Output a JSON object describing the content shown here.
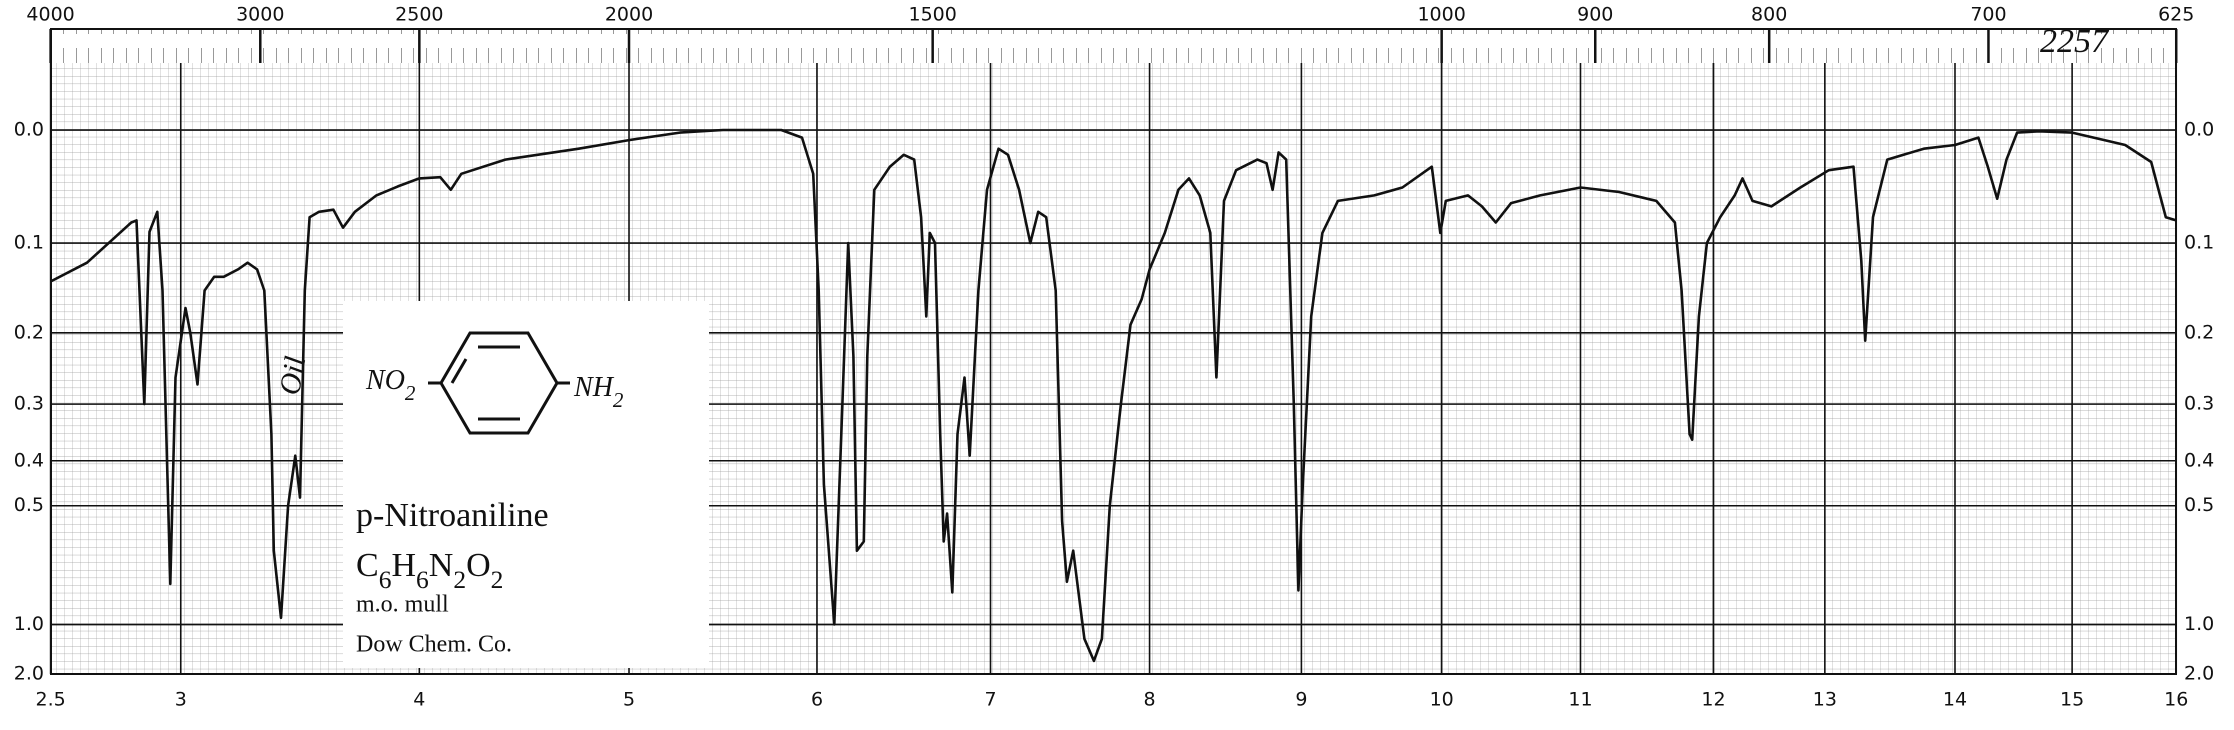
{
  "chart_data": {
    "type": "line",
    "y_scale": "transmittance",
    "color": "#111111",
    "grid": true,
    "xlim": [
      2.5,
      16
    ],
    "ylim": [
      -0.05,
      2
    ],
    "xticks": [
      2.5,
      3,
      4,
      5,
      6,
      7,
      8,
      9,
      10,
      11,
      12,
      13,
      14,
      15,
      16
    ],
    "x2ticks": [
      4000,
      3000,
      2500,
      2000,
      1500,
      1000,
      900,
      800,
      700,
      625
    ],
    "yticks": [
      {
        "value": 0,
        "label": "0.0"
      },
      0.1,
      0.2,
      0.3,
      0.4,
      0.5,
      {
        "value": 1,
        "label": "1.0"
      },
      {
        "value": 2,
        "label": "2.0"
      }
    ],
    "annotations": [
      "2257",
      "Oil"
    ],
    "inset": {
      "left_group": "NO2",
      "right_group": "NH2",
      "name": "p-Nitroaniline",
      "formula": "C6H6N2O2",
      "medium": "m.o. mull",
      "source": "Dow Chem. Co."
    },
    "x": [
      2.5,
      2.64,
      2.81,
      2.83,
      2.86,
      2.88,
      2.91,
      2.93,
      2.96,
      2.98,
      3.02,
      3.04,
      3.07,
      3.1,
      3.14,
      3.18,
      3.24,
      3.28,
      3.32,
      3.35,
      3.38,
      3.39,
      3.42,
      3.45,
      3.48,
      3.5,
      3.52,
      3.54,
      3.58,
      3.64,
      3.68,
      3.73,
      3.82,
      3.91,
      4.0,
      4.1,
      4.15,
      4.2,
      4.41,
      4.76,
      5.0,
      5.27,
      5.5,
      5.81,
      5.92,
      5.98,
      6.01,
      6.04,
      6.1,
      6.14,
      6.18,
      6.21,
      6.23,
      6.27,
      6.29,
      6.33,
      6.42,
      6.5,
      6.56,
      6.6,
      6.63,
      6.65,
      6.68,
      6.71,
      6.73,
      6.75,
      6.78,
      6.81,
      6.85,
      6.88,
      6.93,
      6.98,
      7.05,
      7.11,
      7.18,
      7.25,
      7.3,
      7.35,
      7.41,
      7.45,
      7.48,
      7.52,
      7.59,
      7.65,
      7.7,
      7.75,
      7.82,
      7.88,
      7.95,
      8.0,
      8.1,
      8.19,
      8.26,
      8.33,
      8.4,
      8.44,
      8.49,
      8.57,
      8.71,
      8.77,
      8.81,
      8.85,
      8.9,
      8.95,
      8.98,
      9.01,
      9.07,
      9.15,
      9.26,
      9.52,
      9.72,
      9.93,
      9.99,
      10.03,
      10.19,
      10.29,
      10.39,
      10.5,
      10.71,
      11.0,
      11.29,
      11.57,
      11.71,
      11.76,
      11.82,
      11.84,
      11.89,
      11.95,
      12.06,
      12.19,
      12.26,
      12.35,
      12.52,
      12.78,
      13.03,
      13.22,
      13.28,
      13.31,
      13.37,
      13.48,
      13.76,
      14.0,
      14.2,
      14.28,
      14.36,
      14.44,
      14.53,
      14.72,
      15.0,
      15.31,
      15.51,
      15.76,
      15.9,
      16.0
    ],
    "values": [
      0.14,
      0.12,
      0.08,
      0.078,
      0.3,
      0.089,
      0.07,
      0.15,
      0.76,
      0.26,
      0.17,
      0.2,
      0.27,
      0.15,
      0.135,
      0.135,
      0.127,
      0.12,
      0.127,
      0.15,
      0.35,
      0.63,
      0.95,
      0.5,
      0.39,
      0.48,
      0.15,
      0.075,
      0.07,
      0.068,
      0.085,
      0.07,
      0.055,
      0.047,
      0.04,
      0.039,
      0.05,
      0.036,
      0.024,
      0.015,
      0.008,
      0.002,
      0,
      0,
      0.006,
      0.036,
      0.15,
      0.45,
      1.0,
      0.35,
      0.1,
      0.23,
      0.63,
      0.6,
      0.23,
      0.05,
      0.03,
      0.02,
      0.024,
      0.075,
      0.18,
      0.09,
      0.1,
      0.35,
      0.6,
      0.52,
      0.8,
      0.35,
      0.26,
      0.39,
      0.15,
      0.05,
      0.015,
      0.02,
      0.05,
      0.1,
      0.07,
      0.075,
      0.15,
      0.54,
      0.75,
      0.63,
      1.13,
      1.47,
      1.13,
      0.5,
      0.3,
      0.19,
      0.16,
      0.127,
      0.09,
      0.05,
      0.04,
      0.055,
      0.09,
      0.26,
      0.06,
      0.033,
      0.024,
      0.027,
      0.05,
      0.018,
      0.024,
      0.3,
      0.79,
      0.45,
      0.18,
      0.09,
      0.06,
      0.055,
      0.048,
      0.03,
      0.09,
      0.06,
      0.055,
      0.065,
      0.08,
      0.062,
      0.055,
      0.048,
      0.052,
      0.06,
      0.08,
      0.15,
      0.35,
      0.36,
      0.18,
      0.1,
      0.075,
      0.055,
      0.04,
      0.06,
      0.065,
      0.048,
      0.033,
      0.03,
      0.118,
      0.21,
      0.075,
      0.024,
      0.015,
      0.012,
      0.006,
      0.03,
      0.058,
      0.024,
      0.002,
      0.001,
      0.002,
      0.008,
      0.012,
      0.026,
      0.075,
      0.078
    ]
  }
}
